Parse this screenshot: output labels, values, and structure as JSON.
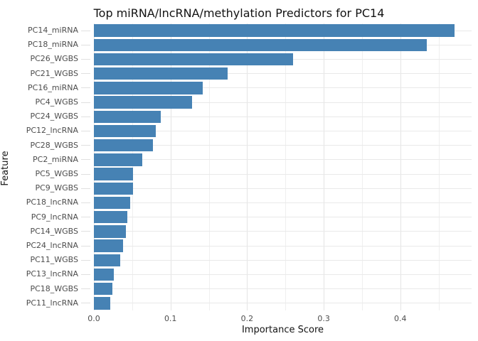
{
  "chart_data": {
    "type": "bar",
    "orientation": "horizontal",
    "title": "Top miRNA/lncRNA/methylation Predictors for PC14",
    "xlabel": "Importance Score",
    "ylabel": "Feature",
    "categories": [
      "PC14_miRNA",
      "PC18_miRNA",
      "PC26_WGBS",
      "PC21_WGBS",
      "PC16_miRNA",
      "PC4_WGBS",
      "PC24_WGBS",
      "PC12_lncRNA",
      "PC28_WGBS",
      "PC2_miRNA",
      "PC5_WGBS",
      "PC9_WGBS",
      "PC18_lncRNA",
      "PC9_lncRNA",
      "PC14_WGBS",
      "PC24_lncRNA",
      "PC11_WGBS",
      "PC13_lncRNA",
      "PC18_WGBS",
      "PC11_lncRNA"
    ],
    "values": [
      0.471,
      0.435,
      0.26,
      0.175,
      0.142,
      0.128,
      0.087,
      0.081,
      0.077,
      0.063,
      0.051,
      0.051,
      0.047,
      0.044,
      0.042,
      0.038,
      0.034,
      0.026,
      0.024,
      0.021
    ],
    "x_ticks": [
      "0.0",
      "0.1",
      "0.2",
      "0.3",
      "0.4"
    ],
    "x_tick_values": [
      0.0,
      0.1,
      0.2,
      0.3,
      0.4
    ],
    "xlim": [
      0,
      0.495
    ],
    "grid": "vertical lines every 0.05 (major at 0.1), horizontal line per category",
    "legend": "none",
    "bar_color": "#4682B4",
    "grid_color": "#e9e9e9",
    "tick_label_color": "#4d4d4d",
    "title_color": "#131313"
  }
}
